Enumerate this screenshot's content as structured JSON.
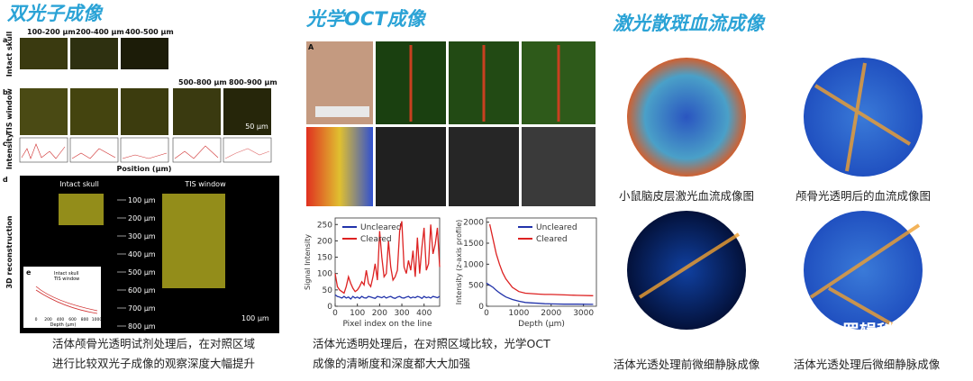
{
  "two_photon": {
    "title": "双光子成像",
    "letters": [
      "a",
      "b",
      "c",
      "d",
      "e"
    ],
    "depths_top": [
      "100-200 µm",
      "200-400 µm",
      "400-500 µm"
    ],
    "depths_extra": [
      "500-800 µm",
      "800-900 µm"
    ],
    "row_labels": [
      "Intact skull",
      "TIS window",
      "Intensity",
      "3D reconstruction"
    ],
    "scale": "50 µm",
    "position_label": "Position (µm)",
    "recon_titles": [
      "Intact skull",
      "TIS window"
    ],
    "recon_depths": [
      "100 µm",
      "200 µm",
      "300 µm",
      "400 µm",
      "500 µm",
      "600 µm",
      "700 µm",
      "800 µm"
    ],
    "recon_scale": "100 µm",
    "inset_legend": [
      "Intact skull",
      "TIS window"
    ],
    "inset_xticks": [
      "0",
      "200",
      "400",
      "600",
      "800",
      "1000"
    ],
    "inset_xlabel": "Depth (µm)",
    "caption": [
      "活体颅骨光透明试剂处理后，在对照区域",
      "进行比较双光子成像的观察深度大幅提升"
    ]
  },
  "oct": {
    "title": "光学OCT成像",
    "letter": "A",
    "caption": [
      "活体光透明处理后，在对照区域比较，光学OCT",
      "成像的清晰度和深度都大大加强"
    ]
  },
  "speckle": {
    "title": "激光散斑血流成像",
    "captions": [
      "小鼠脑皮层激光血流成像图",
      "颅骨光透明后的血流成像图",
      "活体光透处理前微细静脉成像",
      "活体光透处理后微细静脉成像"
    ]
  },
  "watermark": "罗辑科学",
  "chart_data": [
    {
      "type": "line",
      "xlabel": "Pixel index on the line",
      "ylabel": "Signal Intensity",
      "x": [
        0,
        10,
        20,
        30,
        40,
        50,
        60,
        70,
        80,
        90,
        100,
        110,
        120,
        130,
        140,
        150,
        160,
        170,
        180,
        190,
        200,
        210,
        220,
        230,
        240,
        250,
        260,
        270,
        280,
        290,
        300,
        310,
        320,
        330,
        340,
        350,
        360,
        370,
        380,
        390,
        400,
        410,
        420,
        430,
        440,
        450,
        460,
        470
      ],
      "series": [
        {
          "name": "Uncleared",
          "color": "#2233aa",
          "values": [
            35,
            30,
            28,
            25,
            30,
            25,
            28,
            22,
            30,
            25,
            28,
            24,
            30,
            26,
            25,
            30,
            28,
            26,
            24,
            30,
            28,
            26,
            30,
            25,
            28,
            30,
            26,
            24,
            28,
            30,
            26,
            25,
            28,
            30,
            25,
            28,
            26,
            30,
            28,
            24,
            30,
            26,
            28,
            25,
            30,
            28,
            26,
            30
          ]
        },
        {
          "name": "Cleared",
          "color": "#dd2222",
          "values": [
            100,
            60,
            50,
            45,
            40,
            60,
            90,
            70,
            55,
            45,
            50,
            60,
            75,
            65,
            110,
            70,
            60,
            90,
            130,
            80,
            230,
            150,
            90,
            100,
            200,
            120,
            80,
            90,
            110,
            230,
            260,
            120,
            100,
            140,
            110,
            170,
            90,
            210,
            100,
            180,
            240,
            110,
            130,
            250,
            160,
            190,
            240,
            120
          ]
        }
      ],
      "xlim": [
        0,
        470
      ],
      "ylim": [
        0,
        270
      ],
      "xticks": [
        0,
        100,
        200,
        300,
        400
      ],
      "yticks": [
        0,
        50,
        100,
        150,
        200,
        250
      ]
    },
    {
      "type": "line",
      "xlabel": "Depth (µm)",
      "ylabel": "Intensity (z-axis profile)",
      "x": [
        0,
        100,
        200,
        300,
        400,
        500,
        600,
        800,
        1000,
        1200,
        1400,
        1600,
        1800,
        2000,
        2400,
        2800,
        3300
      ],
      "series": [
        {
          "name": "Uncleared",
          "color": "#2233aa",
          "values": [
            550,
            500,
            450,
            380,
            320,
            270,
            220,
            160,
            120,
            90,
            80,
            70,
            60,
            55,
            50,
            50,
            45
          ]
        },
        {
          "name": "Cleared",
          "color": "#dd2222",
          "values": [
            null,
            1950,
            1600,
            1250,
            1000,
            800,
            650,
            450,
            350,
            310,
            300,
            290,
            280,
            280,
            270,
            260,
            250
          ]
        }
      ],
      "xlim": [
        0,
        3400
      ],
      "ylim": [
        0,
        2100
      ],
      "xticks": [
        0,
        1000,
        2000,
        3000
      ],
      "yticks": [
        0,
        500,
        1000,
        1500,
        2000
      ]
    }
  ]
}
